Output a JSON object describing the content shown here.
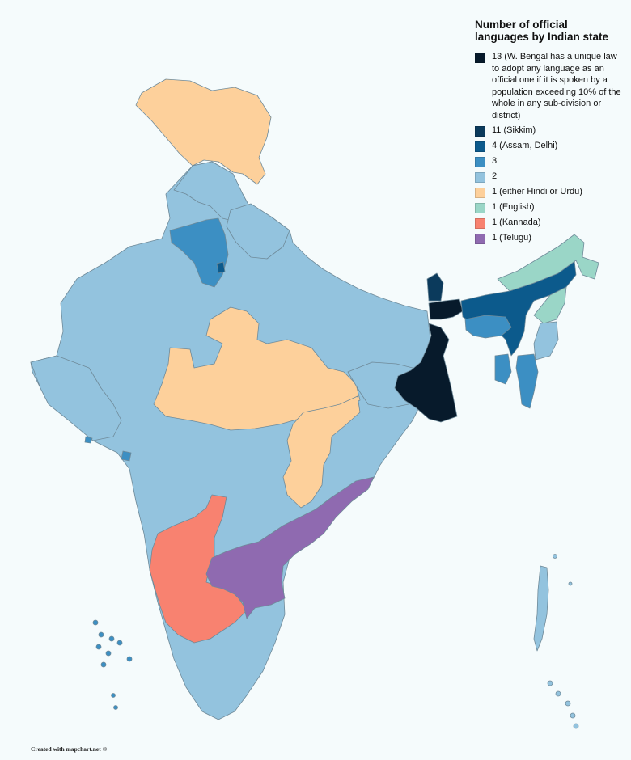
{
  "map": {
    "legend_title": "Number of official languages by Indian state",
    "legend": [
      {
        "label": "13 (W. Bengal has a unique law to adopt any language as an official one if it is spoken by a population exceeding 10% of the whole in any sub-division or district)",
        "color": "#071a2b"
      },
      {
        "label": "11 (Sikkim)",
        "color": "#0b3a5c"
      },
      {
        "label": "4 (Assam, Delhi)",
        "color": "#0c5a8c"
      },
      {
        "label": "3",
        "color": "#3c8fc3"
      },
      {
        "label": "2",
        "color": "#93c3de"
      },
      {
        "label": "1 (either Hindi or Urdu)",
        "color": "#fdd09b"
      },
      {
        "label": "1 (English)",
        "color": "#9ad6c7"
      },
      {
        "label": "1 (Kannada)",
        "color": "#f88270"
      },
      {
        "label": "1 (Telugu)",
        "color": "#8f6ab0"
      }
    ],
    "credit": "Created with mapchart.net ©"
  }
}
